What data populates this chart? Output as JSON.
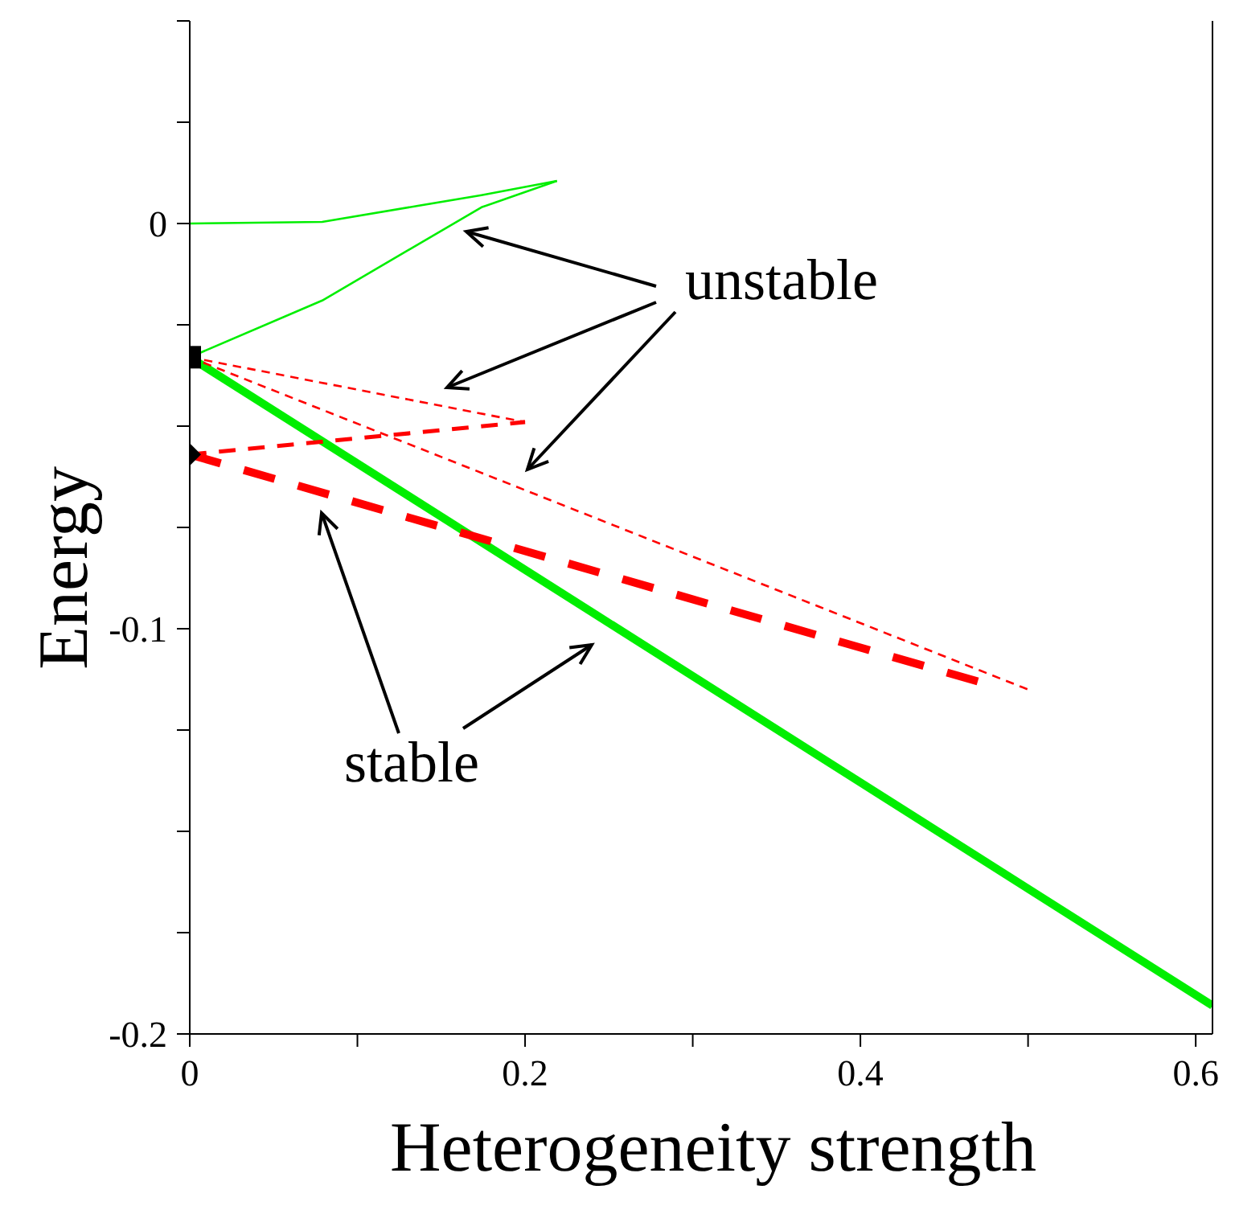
{
  "chart_data": {
    "type": "line",
    "xlabel": "Heterogeneity strength",
    "ylabel": "Energy",
    "xlim": [
      0,
      0.61
    ],
    "xticks": [
      0,
      {
        "value": 0.1,
        "label": null
      },
      0.2,
      {
        "value": 0.3,
        "label": null
      },
      0.4,
      {
        "value": 0.5,
        "label": null
      },
      0.6
    ],
    "ylim": [
      -0.2,
      0.05
    ],
    "yticks": [
      -0.2,
      {
        "value": -0.175,
        "label": null
      },
      {
        "value": -0.15,
        "label": null
      },
      {
        "value": -0.125,
        "label": null
      },
      -0.1,
      {
        "value": -0.075,
        "label": null
      },
      {
        "value": -0.05,
        "label": null
      },
      {
        "value": -0.025,
        "label": null
      },
      0,
      {
        "value": 0.025,
        "label": null
      },
      {
        "value": 0.05,
        "label": null
      }
    ],
    "grid": false,
    "annotations": [
      "unstable",
      "stable"
    ],
    "series": [
      {
        "color": "#00ee00",
        "line_style": "solid",
        "x": [
          0,
          0.079,
          0.174,
          0.219
        ],
        "values": [
          0,
          0.0004,
          0.007,
          0.0105
        ]
      },
      {
        "color": "#00ee00",
        "line_style": "solid",
        "x": [
          0,
          0.079,
          0.174,
          0.219
        ],
        "values": [
          -0.033,
          -0.019,
          0.004,
          0.0105
        ]
      },
      {
        "color": "#00ee00",
        "line_style": "solid",
        "x": [
          0,
          0.61
        ],
        "values": [
          -0.033,
          -0.193
        ]
      },
      {
        "color": "#ff0000",
        "line_style": "dashed",
        "x": [
          0,
          0.2
        ],
        "values": [
          -0.033,
          -0.049
        ]
      },
      {
        "color": "#ff0000",
        "line_style": "dashed",
        "x": [
          0,
          0.2
        ],
        "values": [
          -0.057,
          -0.049
        ]
      },
      {
        "color": "#ff0000",
        "line_style": "dashed",
        "x": [
          0,
          0.5
        ],
        "values": [
          -0.033,
          -0.115
        ]
      },
      {
        "color": "#ff0000",
        "line_style": "dashed",
        "x": [
          0,
          0.47
        ],
        "values": [
          -0.057,
          -0.113
        ]
      },
      {
        "type": "scatter",
        "color": "#000000",
        "marker": "square",
        "x": [
          0
        ],
        "values": [
          -0.033
        ]
      },
      {
        "type": "scatter",
        "color": "#000000",
        "marker": "diamond",
        "x": [
          0
        ],
        "values": [
          -0.057
        ]
      }
    ]
  }
}
